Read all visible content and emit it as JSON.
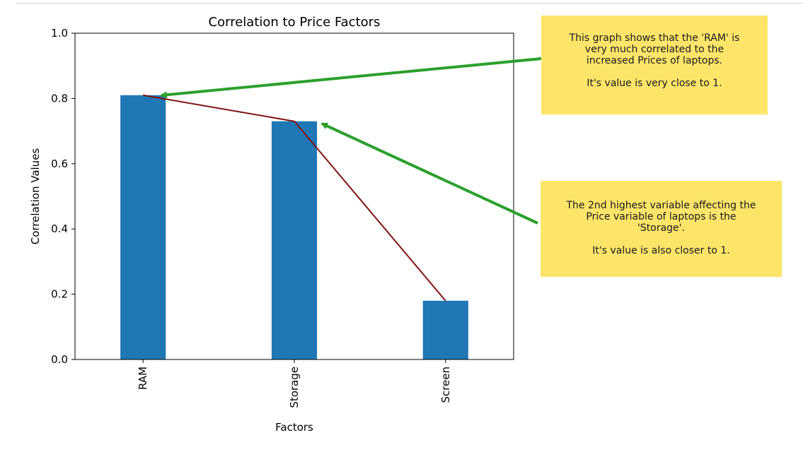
{
  "chart_data": {
    "type": "bar",
    "title": "Correlation to Price Factors",
    "xlabel": "Factors",
    "ylabel": "Correlation Values",
    "categories": [
      "RAM",
      "Storage",
      "Screen"
    ],
    "values": [
      0.81,
      0.73,
      0.18
    ],
    "ylim": [
      0,
      1.0
    ],
    "yticks": [
      "0.0",
      "0.2",
      "0.4",
      "0.6",
      "0.8",
      "1.0"
    ],
    "overlay_line": {
      "type": "line",
      "values": [
        0.81,
        0.73,
        0.18
      ]
    },
    "grid": false
  },
  "annotations": [
    {
      "text": "This graph shows that the 'RAM' is\nvery much correlated to the\nincreased Prices of laptops.",
      "note": "It's value is very close to 1.",
      "points_to": "RAM"
    },
    {
      "text": "The 2nd highest variable affecting the\nPrice variable of laptops is the\n'Storage'.",
      "note": "It's value is also closer to 1.",
      "points_to": "Storage"
    }
  ],
  "colors": {
    "bar": "#1f77b4",
    "line": "#7f1414",
    "arrow": "#2ca02c",
    "note_bg": "#fde56a",
    "axis": "#000000"
  }
}
